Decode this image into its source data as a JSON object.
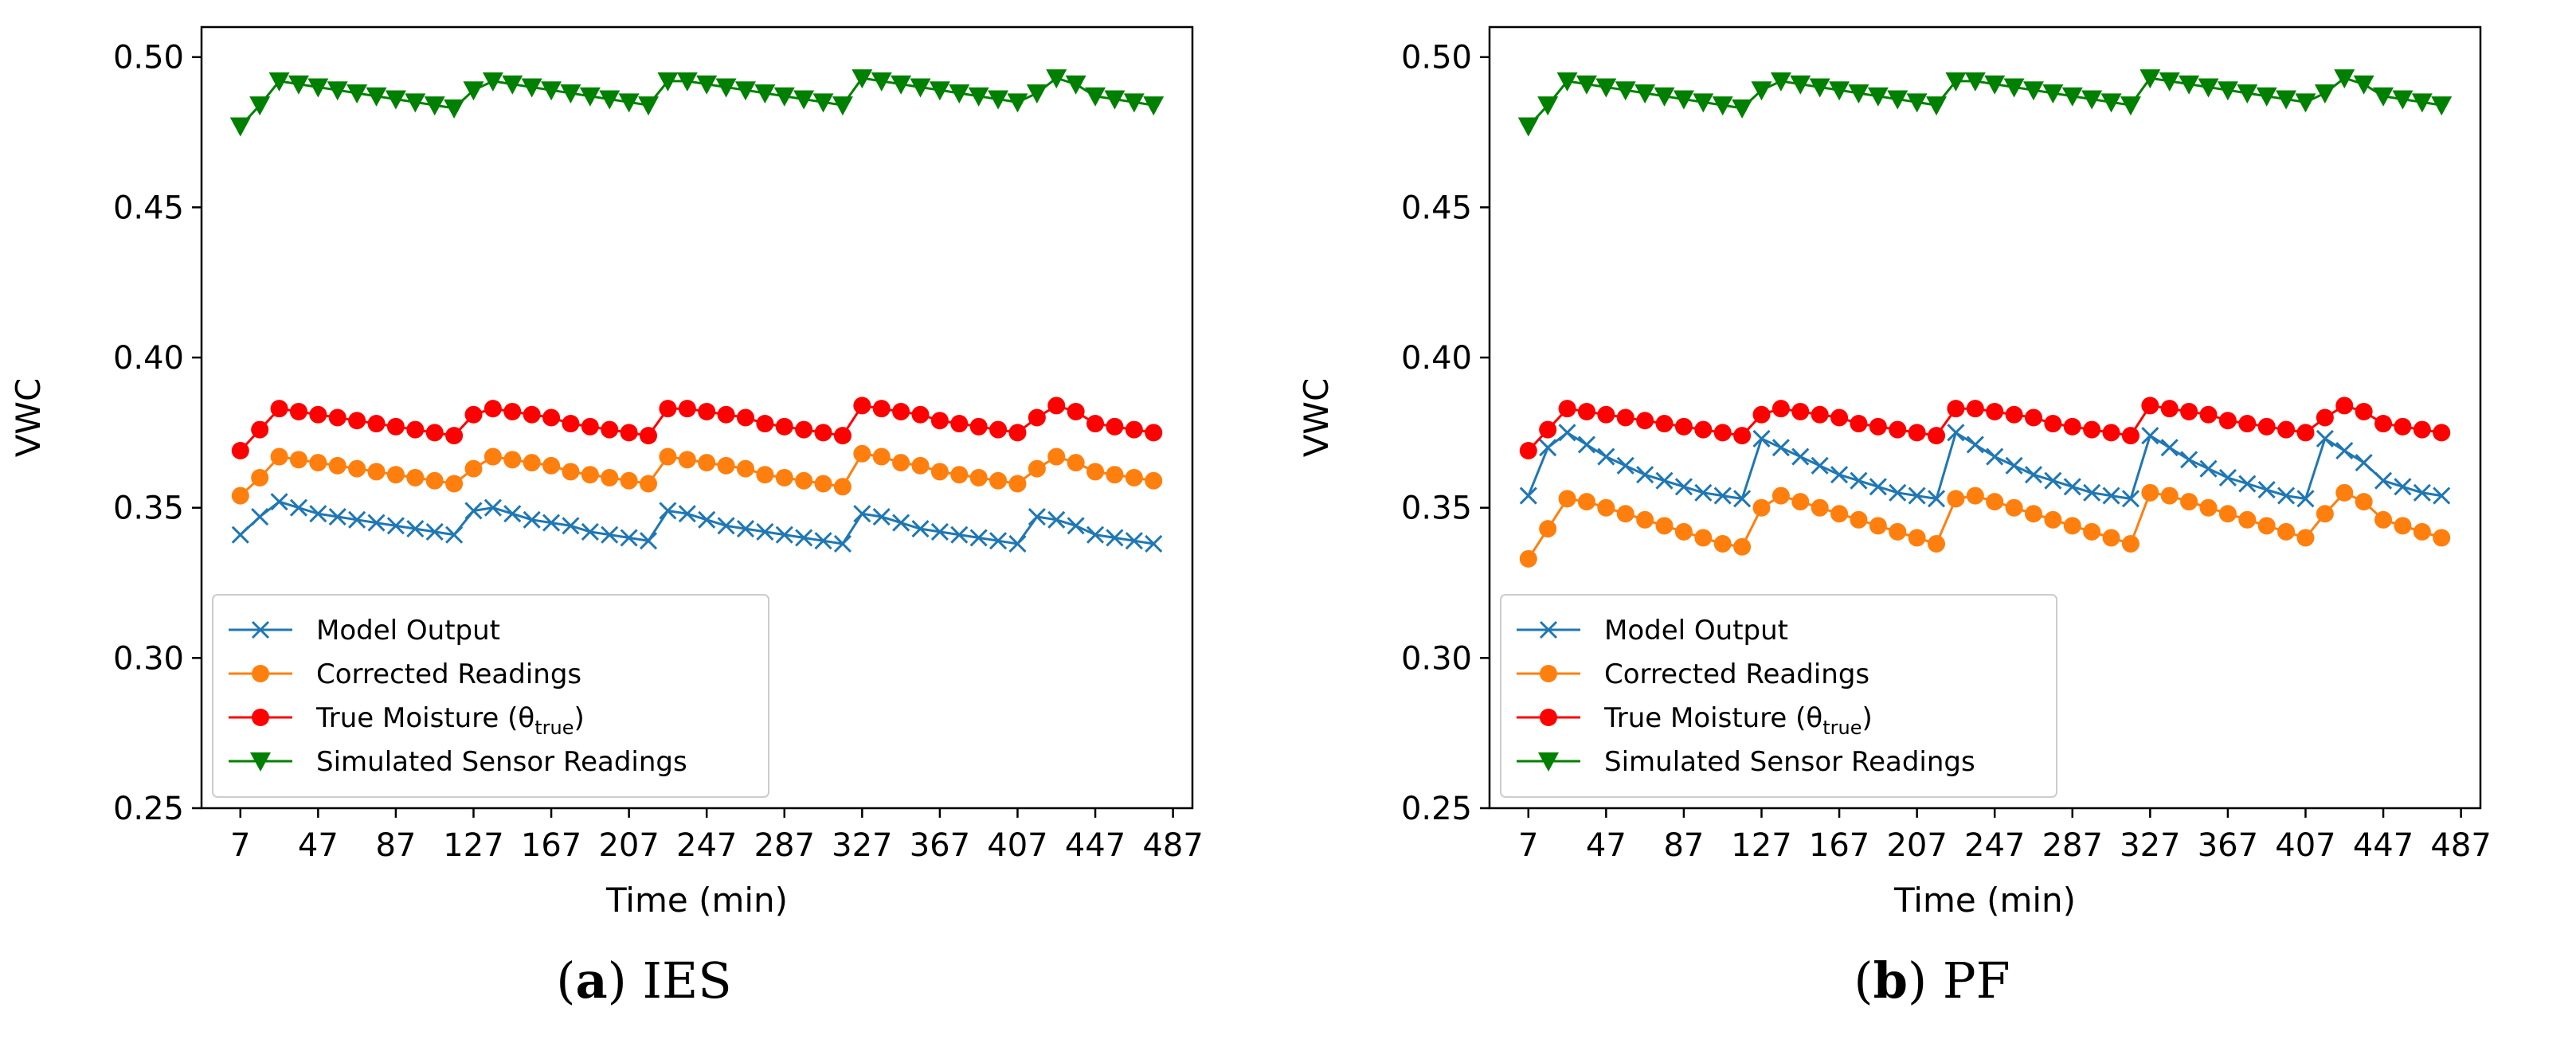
{
  "chart_data": [
    {
      "type": "line",
      "caption": {
        "letter": "a",
        "method": "IES"
      },
      "xlabel": "Time (min)",
      "ylabel": "VWC",
      "xlim": [
        -13,
        497
      ],
      "ylim": [
        0.25,
        0.51
      ],
      "xticks": [
        7,
        47,
        87,
        127,
        167,
        207,
        247,
        287,
        327,
        367,
        407,
        447,
        487
      ],
      "yticks": [
        "0.25",
        "0.30",
        "0.35",
        "0.40",
        "0.45",
        "0.50"
      ],
      "legend_position": "lower-left",
      "x_note": "one sample every 10 min, 48 points per series (x = 7 … 477)",
      "series": [
        {
          "name": "Model Output",
          "color": "#1f77b4",
          "marker": "x",
          "values": [
            0.341,
            0.347,
            0.352,
            0.35,
            0.348,
            0.347,
            0.346,
            0.345,
            0.344,
            0.343,
            0.342,
            0.341,
            0.349,
            0.35,
            0.348,
            0.346,
            0.345,
            0.344,
            0.342,
            0.341,
            0.34,
            0.339,
            0.349,
            0.348,
            0.346,
            0.344,
            0.343,
            0.342,
            0.341,
            0.34,
            0.339,
            0.338,
            0.348,
            0.347,
            0.345,
            0.343,
            0.342,
            0.341,
            0.34,
            0.339,
            0.338,
            0.347,
            0.346,
            0.344,
            0.341,
            0.34,
            0.339,
            0.338
          ]
        },
        {
          "name": "Corrected Readings",
          "color": "#ff7f0e",
          "marker": "circle",
          "values": [
            0.354,
            0.36,
            0.367,
            0.366,
            0.365,
            0.364,
            0.363,
            0.362,
            0.361,
            0.36,
            0.359,
            0.358,
            0.363,
            0.367,
            0.366,
            0.365,
            0.364,
            0.362,
            0.361,
            0.36,
            0.359,
            0.358,
            0.367,
            0.366,
            0.365,
            0.364,
            0.363,
            0.361,
            0.36,
            0.359,
            0.358,
            0.357,
            0.368,
            0.367,
            0.365,
            0.364,
            0.362,
            0.361,
            0.36,
            0.359,
            0.358,
            0.363,
            0.367,
            0.365,
            0.362,
            0.361,
            0.36,
            0.359
          ]
        },
        {
          "name": "True Moisture (θ",
          "name_sub": "true",
          "name_suffix": ")",
          "color": "#ff0000",
          "marker": "circle",
          "values": [
            0.369,
            0.376,
            0.383,
            0.382,
            0.381,
            0.38,
            0.379,
            0.378,
            0.377,
            0.376,
            0.375,
            0.374,
            0.381,
            0.383,
            0.382,
            0.381,
            0.38,
            0.378,
            0.377,
            0.376,
            0.375,
            0.374,
            0.383,
            0.383,
            0.382,
            0.381,
            0.38,
            0.378,
            0.377,
            0.376,
            0.375,
            0.374,
            0.384,
            0.383,
            0.382,
            0.381,
            0.379,
            0.378,
            0.377,
            0.376,
            0.375,
            0.38,
            0.384,
            0.382,
            0.378,
            0.377,
            0.376,
            0.375
          ]
        },
        {
          "name": "Simulated Sensor Readings",
          "color": "#008000",
          "marker": "triangle-down",
          "values": [
            0.477,
            0.484,
            0.492,
            0.491,
            0.49,
            0.489,
            0.488,
            0.487,
            0.486,
            0.485,
            0.484,
            0.483,
            0.489,
            0.492,
            0.491,
            0.49,
            0.489,
            0.488,
            0.487,
            0.486,
            0.485,
            0.484,
            0.492,
            0.492,
            0.491,
            0.49,
            0.489,
            0.488,
            0.487,
            0.486,
            0.485,
            0.484,
            0.493,
            0.492,
            0.491,
            0.49,
            0.489,
            0.488,
            0.487,
            0.486,
            0.485,
            0.488,
            0.493,
            0.491,
            0.487,
            0.486,
            0.485,
            0.484
          ]
        }
      ]
    },
    {
      "type": "line",
      "caption": {
        "letter": "b",
        "method": "PF"
      },
      "xlabel": "Time (min)",
      "ylabel": "VWC",
      "xlim": [
        -13,
        497
      ],
      "ylim": [
        0.25,
        0.51
      ],
      "xticks": [
        7,
        47,
        87,
        127,
        167,
        207,
        247,
        287,
        327,
        367,
        407,
        447,
        487
      ],
      "yticks": [
        "0.25",
        "0.30",
        "0.35",
        "0.40",
        "0.45",
        "0.50"
      ],
      "legend_position": "lower-left",
      "series": [
        {
          "name": "Model Output",
          "color": "#1f77b4",
          "marker": "x",
          "values": [
            0.354,
            0.37,
            0.375,
            0.371,
            0.367,
            0.364,
            0.361,
            0.359,
            0.357,
            0.355,
            0.354,
            0.353,
            0.373,
            0.37,
            0.367,
            0.364,
            0.361,
            0.359,
            0.357,
            0.355,
            0.354,
            0.353,
            0.375,
            0.371,
            0.367,
            0.364,
            0.361,
            0.359,
            0.357,
            0.355,
            0.354,
            0.353,
            0.374,
            0.37,
            0.366,
            0.363,
            0.36,
            0.358,
            0.356,
            0.354,
            0.353,
            0.373,
            0.369,
            0.365,
            0.359,
            0.357,
            0.355,
            0.354
          ]
        },
        {
          "name": "Corrected Readings",
          "color": "#ff7f0e",
          "marker": "circle",
          "values": [
            0.333,
            0.343,
            0.353,
            0.352,
            0.35,
            0.348,
            0.346,
            0.344,
            0.342,
            0.34,
            0.338,
            0.337,
            0.35,
            0.354,
            0.352,
            0.35,
            0.348,
            0.346,
            0.344,
            0.342,
            0.34,
            0.338,
            0.353,
            0.354,
            0.352,
            0.35,
            0.348,
            0.346,
            0.344,
            0.342,
            0.34,
            0.338,
            0.355,
            0.354,
            0.352,
            0.35,
            0.348,
            0.346,
            0.344,
            0.342,
            0.34,
            0.348,
            0.355,
            0.352,
            0.346,
            0.344,
            0.342,
            0.34
          ]
        },
        {
          "name": "True Moisture (θ",
          "name_sub": "true",
          "name_suffix": ")",
          "color": "#ff0000",
          "marker": "circle",
          "values": [
            0.369,
            0.376,
            0.383,
            0.382,
            0.381,
            0.38,
            0.379,
            0.378,
            0.377,
            0.376,
            0.375,
            0.374,
            0.381,
            0.383,
            0.382,
            0.381,
            0.38,
            0.378,
            0.377,
            0.376,
            0.375,
            0.374,
            0.383,
            0.383,
            0.382,
            0.381,
            0.38,
            0.378,
            0.377,
            0.376,
            0.375,
            0.374,
            0.384,
            0.383,
            0.382,
            0.381,
            0.379,
            0.378,
            0.377,
            0.376,
            0.375,
            0.38,
            0.384,
            0.382,
            0.378,
            0.377,
            0.376,
            0.375
          ]
        },
        {
          "name": "Simulated Sensor Readings",
          "color": "#008000",
          "marker": "triangle-down",
          "values": [
            0.477,
            0.484,
            0.492,
            0.491,
            0.49,
            0.489,
            0.488,
            0.487,
            0.486,
            0.485,
            0.484,
            0.483,
            0.489,
            0.492,
            0.491,
            0.49,
            0.489,
            0.488,
            0.487,
            0.486,
            0.485,
            0.484,
            0.492,
            0.492,
            0.491,
            0.49,
            0.489,
            0.488,
            0.487,
            0.486,
            0.485,
            0.484,
            0.493,
            0.492,
            0.491,
            0.49,
            0.489,
            0.488,
            0.487,
            0.486,
            0.485,
            0.488,
            0.493,
            0.491,
            0.487,
            0.486,
            0.485,
            0.484
          ]
        }
      ]
    }
  ]
}
